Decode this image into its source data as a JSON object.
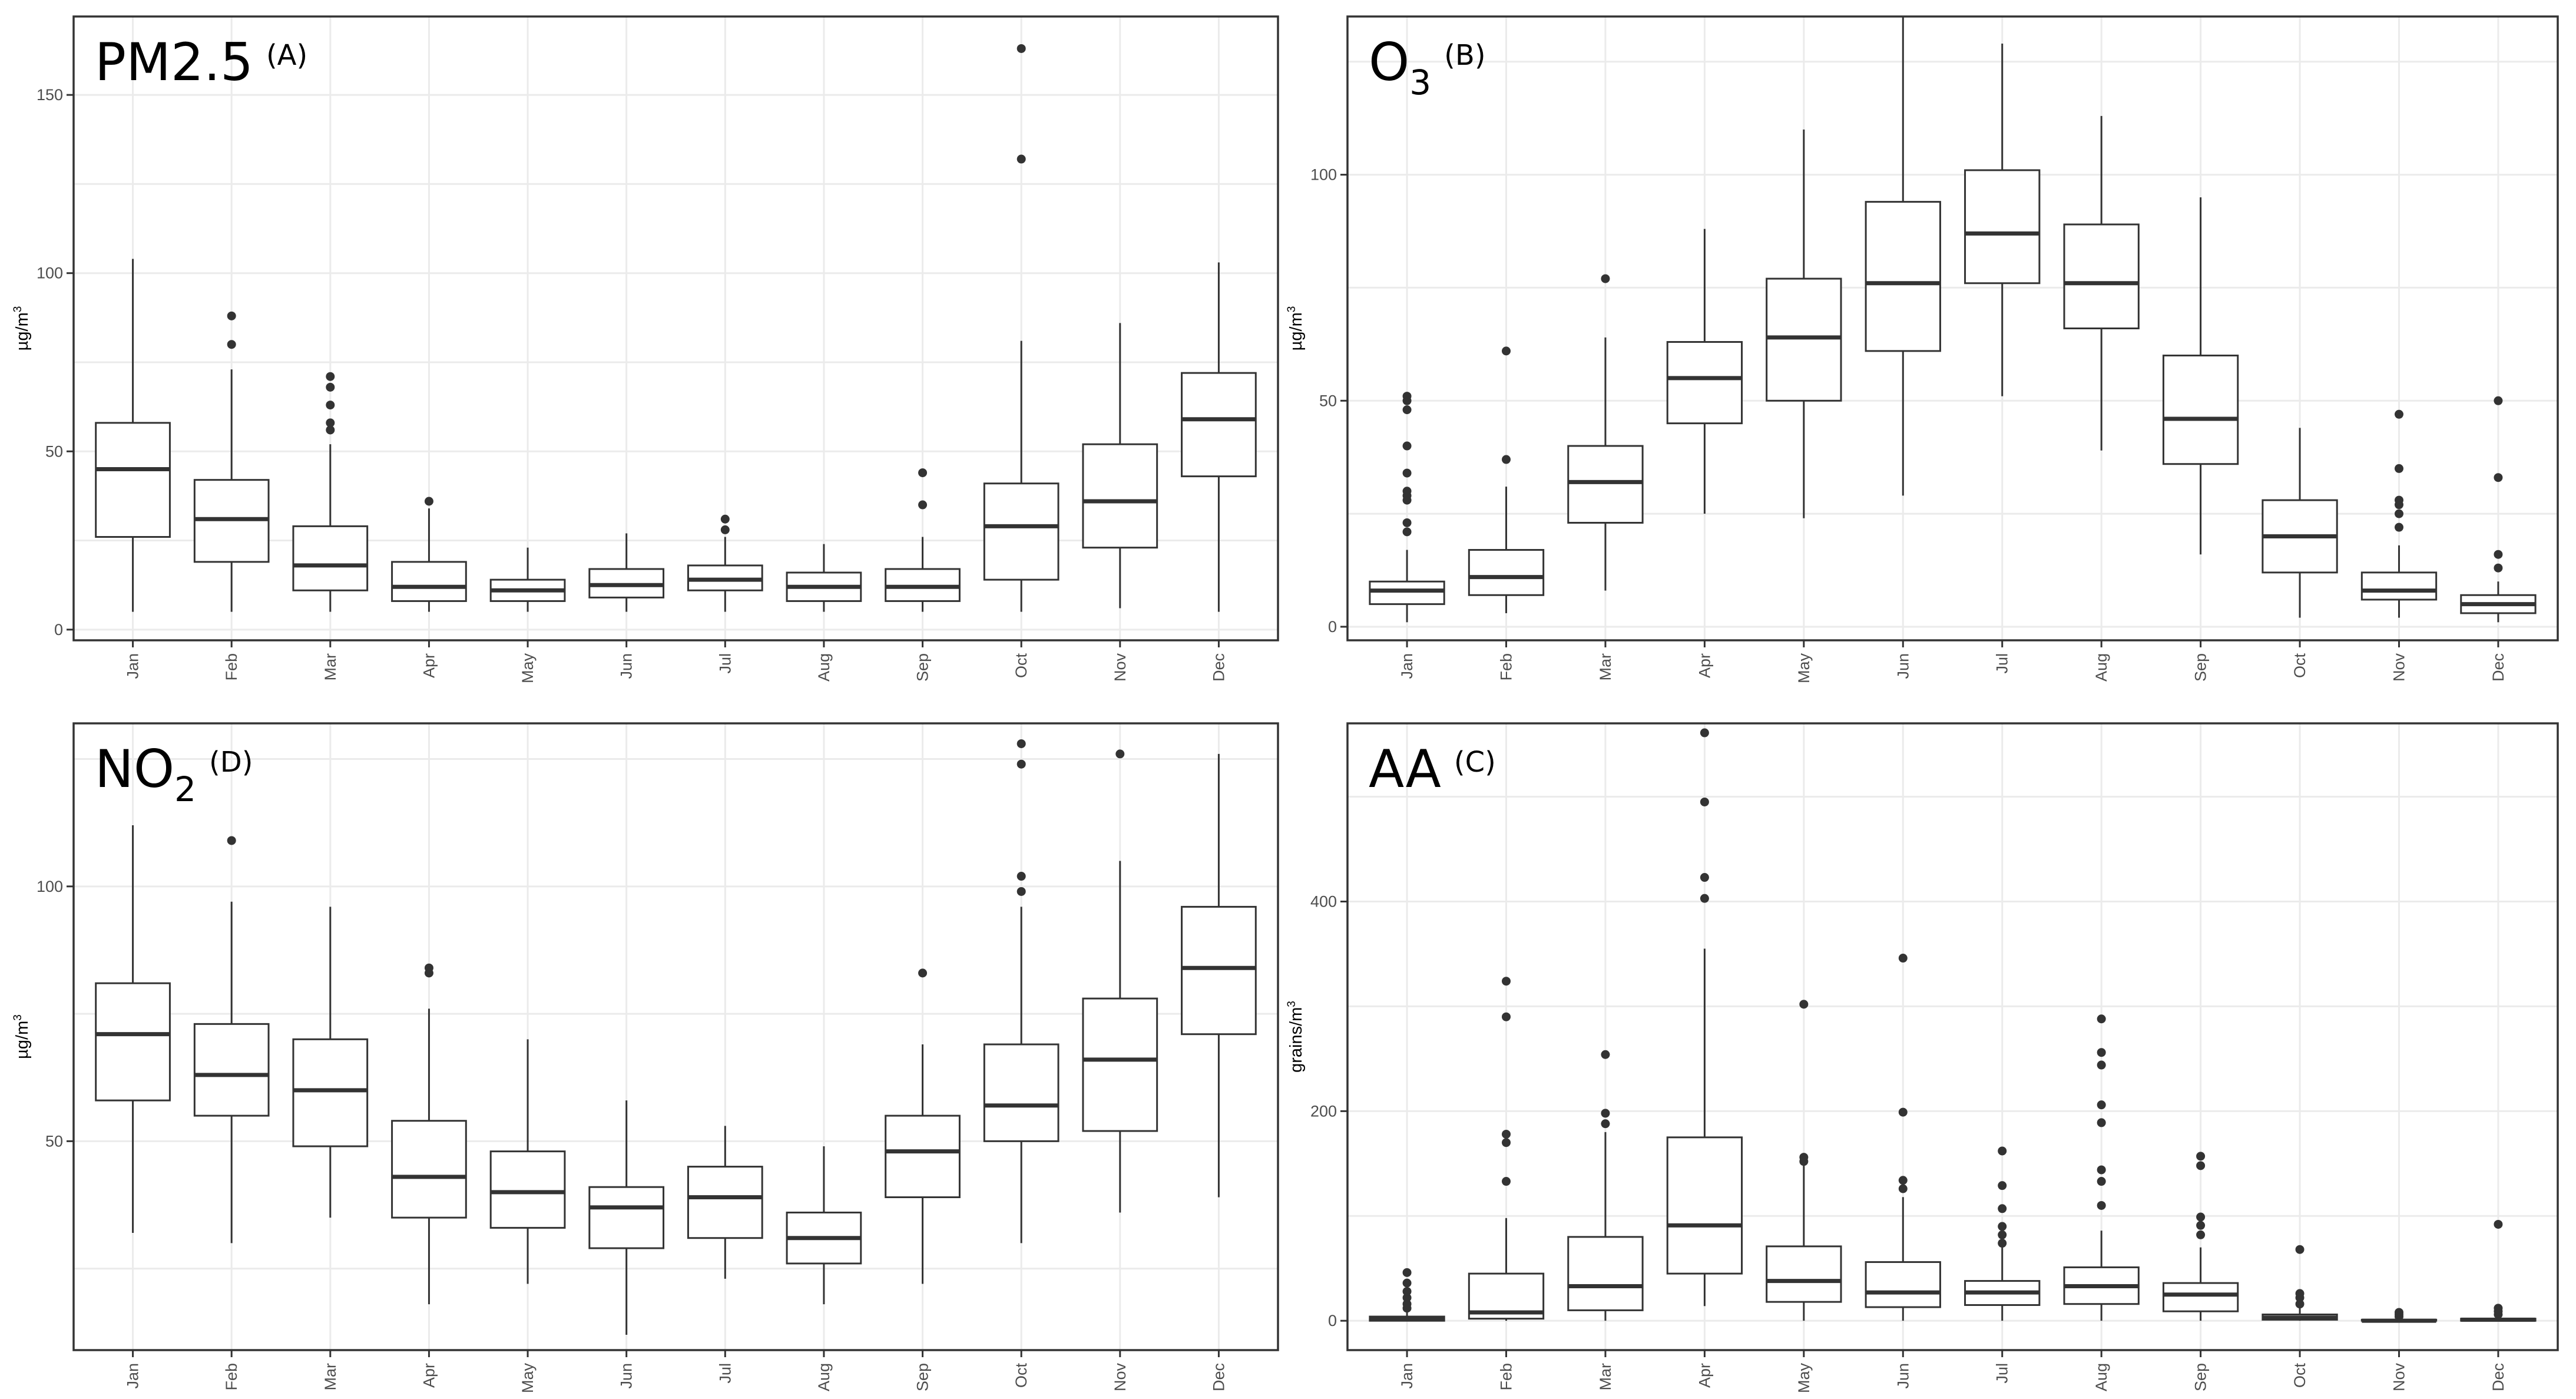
{
  "chart_data": [
    {
      "type": "boxplot",
      "title_main": "PM2.5",
      "title_sub": "",
      "panel_letter": "(A)",
      "xlabel": "",
      "ylabel_base": "µg/m",
      "ylabel_sup": "3",
      "ylim": [
        -3,
        172
      ],
      "yticks": [
        0,
        50,
        100,
        150
      ],
      "ygrid_minor": [
        25,
        75,
        125
      ],
      "categories": [
        "Jan",
        "Feb",
        "Mar",
        "Apr",
        "May",
        "Jun",
        "Jul",
        "Aug",
        "Sep",
        "Oct",
        "Nov",
        "Dec"
      ],
      "boxes": [
        {
          "low": 5,
          "q1": 26,
          "median": 45,
          "q3": 58,
          "high": 104,
          "outliers": []
        },
        {
          "low": 5,
          "q1": 19,
          "median": 31,
          "q3": 42,
          "high": 73,
          "outliers": [
            80,
            88
          ]
        },
        {
          "low": 5,
          "q1": 11,
          "median": 18,
          "q3": 29,
          "high": 52,
          "outliers": [
            56,
            58,
            63,
            68,
            71
          ]
        },
        {
          "low": 5,
          "q1": 8,
          "median": 12,
          "q3": 19,
          "high": 34,
          "outliers": [
            36
          ]
        },
        {
          "low": 5,
          "q1": 8,
          "median": 11,
          "q3": 14,
          "high": 23,
          "outliers": []
        },
        {
          "low": 5,
          "q1": 9,
          "median": 12.5,
          "q3": 17,
          "high": 27,
          "outliers": []
        },
        {
          "low": 5,
          "q1": 11,
          "median": 14,
          "q3": 18,
          "high": 26,
          "outliers": [
            28,
            31
          ]
        },
        {
          "low": 5,
          "q1": 8,
          "median": 12,
          "q3": 16,
          "high": 24,
          "outliers": []
        },
        {
          "low": 5,
          "q1": 8,
          "median": 12,
          "q3": 17,
          "high": 26,
          "outliers": [
            35,
            44
          ]
        },
        {
          "low": 5,
          "q1": 14,
          "median": 29,
          "q3": 41,
          "high": 81,
          "outliers": [
            132,
            163
          ]
        },
        {
          "low": 6,
          "q1": 23,
          "median": 36,
          "q3": 52,
          "high": 86,
          "outliers": []
        },
        {
          "low": 5,
          "q1": 43,
          "median": 59,
          "q3": 72,
          "high": 103,
          "outliers": []
        }
      ]
    },
    {
      "type": "boxplot",
      "title_main": "O",
      "title_sub": "3",
      "panel_letter": "(B)",
      "xlabel": "",
      "ylabel_base": "µg/m",
      "ylabel_sup": "3",
      "ylim": [
        -3,
        135
      ],
      "yticks": [
        0,
        50,
        100
      ],
      "ygrid_minor": [
        25,
        75,
        125
      ],
      "categories": [
        "Jan",
        "Feb",
        "Mar",
        "Apr",
        "May",
        "Jun",
        "Jul",
        "Aug",
        "Sep",
        "Oct",
        "Nov",
        "Dec"
      ],
      "boxes": [
        {
          "low": 1,
          "q1": 5,
          "median": 8,
          "q3": 10,
          "high": 17,
          "outliers": [
            21,
            23,
            28,
            29,
            30,
            34,
            40,
            48,
            50,
            51
          ]
        },
        {
          "low": 3,
          "q1": 7,
          "median": 11,
          "q3": 17,
          "high": 31,
          "outliers": [
            37,
            61
          ]
        },
        {
          "low": 8,
          "q1": 23,
          "median": 32,
          "q3": 40,
          "high": 64,
          "outliers": [
            77
          ]
        },
        {
          "low": 25,
          "q1": 45,
          "median": 55,
          "q3": 63,
          "high": 88,
          "outliers": []
        },
        {
          "low": 24,
          "q1": 50,
          "median": 64,
          "q3": 77,
          "high": 110,
          "outliers": []
        },
        {
          "low": 29,
          "q1": 61,
          "median": 76,
          "q3": 94,
          "high": 135,
          "outliers": []
        },
        {
          "low": 51,
          "q1": 76,
          "median": 87,
          "q3": 101,
          "high": 129,
          "outliers": []
        },
        {
          "low": 39,
          "q1": 66,
          "median": 76,
          "q3": 89,
          "high": 113,
          "outliers": []
        },
        {
          "low": 16,
          "q1": 36,
          "median": 46,
          "q3": 60,
          "high": 95,
          "outliers": []
        },
        {
          "low": 2,
          "q1": 12,
          "median": 20,
          "q3": 28,
          "high": 44,
          "outliers": []
        },
        {
          "low": 2,
          "q1": 6,
          "median": 8,
          "q3": 12,
          "high": 18,
          "outliers": [
            22,
            25,
            27,
            28,
            35,
            47
          ]
        },
        {
          "low": 1,
          "q1": 3,
          "median": 5,
          "q3": 7,
          "high": 10,
          "outliers": [
            13,
            16,
            33,
            50
          ]
        }
      ]
    },
    {
      "type": "boxplot",
      "title_main": "NO",
      "title_sub": "2",
      "panel_letter": "(D)",
      "xlabel": "",
      "ylabel_base": "µg/m",
      "ylabel_sup": "3",
      "ylim": [
        9,
        132
      ],
      "yticks": [
        50,
        100
      ],
      "ygrid_minor": [
        25,
        75,
        125
      ],
      "categories": [
        "Jan",
        "Feb",
        "Mar",
        "Apr",
        "May",
        "Jun",
        "Jul",
        "Aug",
        "Sep",
        "Oct",
        "Nov",
        "Dec"
      ],
      "boxes": [
        {
          "low": 32,
          "q1": 58,
          "median": 71,
          "q3": 81,
          "high": 112,
          "outliers": []
        },
        {
          "low": 30,
          "q1": 55,
          "median": 63,
          "q3": 73,
          "high": 97,
          "outliers": [
            109
          ]
        },
        {
          "low": 35,
          "q1": 49,
          "median": 60,
          "q3": 70,
          "high": 96,
          "outliers": []
        },
        {
          "low": 18,
          "q1": 35,
          "median": 43,
          "q3": 54,
          "high": 76,
          "outliers": [
            83,
            84
          ]
        },
        {
          "low": 22,
          "q1": 33,
          "median": 40,
          "q3": 48,
          "high": 70,
          "outliers": []
        },
        {
          "low": 12,
          "q1": 29,
          "median": 37,
          "q3": 41,
          "high": 58,
          "outliers": []
        },
        {
          "low": 23,
          "q1": 31,
          "median": 39,
          "q3": 45,
          "high": 53,
          "outliers": []
        },
        {
          "low": 18,
          "q1": 26,
          "median": 31,
          "q3": 36,
          "high": 49,
          "outliers": []
        },
        {
          "low": 22,
          "q1": 39,
          "median": 48,
          "q3": 55,
          "high": 69,
          "outliers": [
            83
          ]
        },
        {
          "low": 30,
          "q1": 50,
          "median": 57,
          "q3": 69,
          "high": 96,
          "outliers": [
            99,
            102,
            124,
            128
          ]
        },
        {
          "low": 36,
          "q1": 52,
          "median": 66,
          "q3": 78,
          "high": 105,
          "outliers": [
            126
          ]
        },
        {
          "low": 39,
          "q1": 71,
          "median": 84,
          "q3": 96,
          "high": 126,
          "outliers": []
        }
      ]
    },
    {
      "type": "boxplot",
      "title_main": "AA",
      "title_sub": "",
      "panel_letter": "(C)",
      "xlabel": "",
      "ylabel_base": "grains/m",
      "ylabel_sup": "3",
      "ylim": [
        -28,
        570
      ],
      "yticks": [
        0,
        200,
        400
      ],
      "ygrid_minor": [
        100,
        300,
        500
      ],
      "categories": [
        "Jan",
        "Feb",
        "Mar",
        "Apr",
        "May",
        "Jun",
        "Jul",
        "Aug",
        "Sep",
        "Oct",
        "Nov",
        "Dec"
      ],
      "boxes": [
        {
          "low": 0,
          "q1": 0,
          "median": 2,
          "q3": 4,
          "high": 8,
          "outliers": [
            12,
            16,
            22,
            28,
            36,
            46
          ]
        },
        {
          "low": 0,
          "q1": 2,
          "median": 8,
          "q3": 45,
          "high": 98,
          "outliers": [
            133,
            170,
            178,
            290,
            324
          ]
        },
        {
          "low": 0,
          "q1": 10,
          "median": 33,
          "q3": 80,
          "high": 180,
          "outliers": [
            188,
            198,
            254
          ]
        },
        {
          "low": 14,
          "q1": 45,
          "median": 91,
          "q3": 175,
          "high": 355,
          "outliers": [
            403,
            423,
            495,
            561
          ]
        },
        {
          "low": 0,
          "q1": 18,
          "median": 38,
          "q3": 71,
          "high": 148,
          "outliers": [
            152,
            156,
            302
          ]
        },
        {
          "low": 0,
          "q1": 13,
          "median": 27,
          "q3": 56,
          "high": 118,
          "outliers": [
            126,
            134,
            199,
            346
          ]
        },
        {
          "low": 0,
          "q1": 15,
          "median": 27,
          "q3": 38,
          "high": 70,
          "outliers": [
            74,
            82,
            90,
            107,
            129,
            162
          ]
        },
        {
          "low": 0,
          "q1": 16,
          "median": 33,
          "q3": 51,
          "high": 86,
          "outliers": [
            110,
            133,
            144,
            189,
            206,
            244,
            256,
            288
          ]
        },
        {
          "low": 0,
          "q1": 9,
          "median": 25,
          "q3": 36,
          "high": 70,
          "outliers": [
            82,
            91,
            99,
            148,
            157
          ]
        },
        {
          "low": 0,
          "q1": 1,
          "median": 3,
          "q3": 6,
          "high": 12,
          "outliers": [
            16,
            22,
            26,
            68
          ]
        },
        {
          "low": 0,
          "q1": 0,
          "median": 0,
          "q3": 1,
          "high": 2,
          "outliers": [
            4,
            6,
            8
          ]
        },
        {
          "low": 0,
          "q1": 0,
          "median": 1,
          "q3": 2,
          "high": 4,
          "outliers": [
            6,
            9,
            12,
            92
          ]
        }
      ]
    }
  ]
}
